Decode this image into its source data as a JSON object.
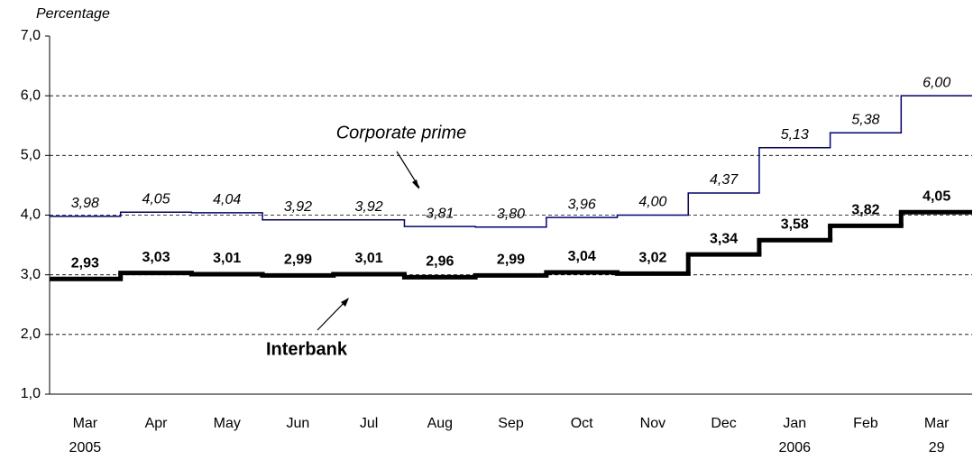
{
  "chart_data": {
    "type": "step",
    "y_label": "Percentage",
    "categories": [
      "Mar",
      "Apr",
      "May",
      "Jun",
      "Jul",
      "Aug",
      "Sep",
      "Oct",
      "Nov",
      "Dec",
      "Jan",
      "Feb",
      "Mar"
    ],
    "category_sublabels": [
      "2005",
      null,
      null,
      null,
      null,
      null,
      null,
      null,
      null,
      null,
      "2006",
      null,
      "29"
    ],
    "ylim": [
      1,
      7
    ],
    "yticks": [
      {
        "value": 1,
        "label": "1,0"
      },
      {
        "value": 2,
        "label": "2,0"
      },
      {
        "value": 3,
        "label": "3,0"
      },
      {
        "value": 4,
        "label": "4,0"
      },
      {
        "value": 5,
        "label": "5,0"
      },
      {
        "value": 6,
        "label": "6,0"
      },
      {
        "value": 7,
        "label": "7,0"
      }
    ],
    "grid": true,
    "series": [
      {
        "name": "Corporate prime",
        "color": "#000080",
        "values": [
          3.98,
          4.05,
          4.04,
          3.92,
          3.92,
          3.81,
          3.8,
          3.96,
          4.0,
          4.37,
          5.13,
          5.38,
          6.0
        ],
        "value_labels": [
          "3,98",
          "4,05",
          "4,04",
          "3,92",
          "3,92",
          "3,81",
          "3,80",
          "3,96",
          "4,00",
          "4,37",
          "5,13",
          "5,38",
          "6,00"
        ]
      },
      {
        "name": "Interbank",
        "color": "#000000",
        "values": [
          2.93,
          3.03,
          3.01,
          2.99,
          3.01,
          2.96,
          2.99,
          3.04,
          3.02,
          3.34,
          3.58,
          3.82,
          4.05
        ],
        "value_labels": [
          "2,93",
          "3,03",
          "3,01",
          "2,99",
          "3,01",
          "2,96",
          "2,99",
          "3,04",
          "3,02",
          "3,34",
          "3,58",
          "3,82",
          "4,05"
        ]
      }
    ]
  }
}
